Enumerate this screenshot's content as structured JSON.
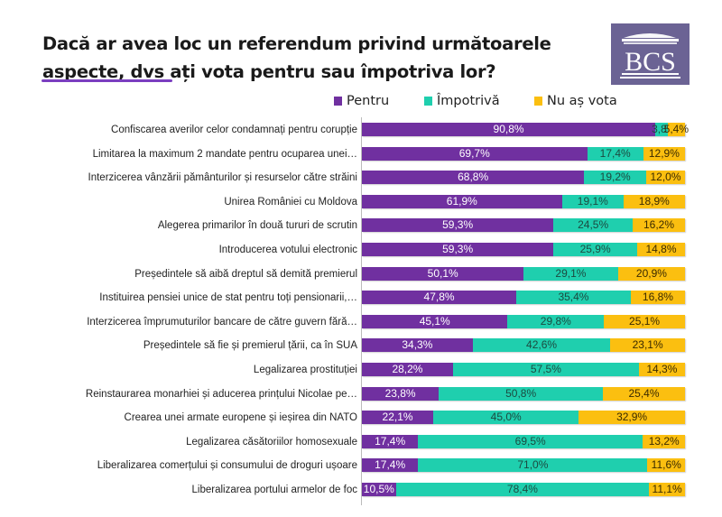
{
  "title_line1": "Dacă ar avea loc un referendum privind următoarele",
  "title_line2": "aspecte, dvs ați vota pentru sau împotriva lor?",
  "logo": {
    "text": "BCS",
    "icon": "bcs-building-logo",
    "bg_color": "#6b6394"
  },
  "colors": {
    "pentru": "#7030a0",
    "impotriva": "#1fcfae",
    "nu_as_vota": "#fbbf10"
  },
  "chart_data": {
    "type": "bar",
    "orientation": "horizontal",
    "stacked": true,
    "title": "Dacă ar avea loc un referendum privind următoarele aspecte, dvs ați vota pentru sau împotriva lor?",
    "legend_position": "top-right",
    "xlabel": "",
    "ylabel": "",
    "xlim": [
      0,
      100
    ],
    "unit": "%",
    "grid": false,
    "categories": [
      "Confiscarea averilor celor condamnați pentru corupție",
      "Limitarea la maximum 2 mandate pentru ocuparea unei…",
      "Interzicerea vânzării pământurilor și resurselor către străini",
      "Unirea României cu Moldova",
      "Alegerea primarilor în două tururi de scrutin",
      "Introducerea votului electronic",
      "Președintele să aibă dreptul să demită premierul",
      "Instituirea pensiei unice de stat pentru toți pensionarii,…",
      "Interzicerea împrumuturilor bancare de către guvern fără…",
      "Președintele să fie și premierul țării, ca în SUA",
      "Legalizarea prostituției",
      "Reinstaurarea monarhiei și aducerea prințului Nicolae pe…",
      "Crearea unei armate europene și ieșirea din NATO",
      "Legalizarea căsătoriilor homosexuale",
      "Liberalizarea comerțului și consumului de droguri ușoare",
      "Liberalizarea portului armelor de foc"
    ],
    "series": [
      {
        "name": "Pentru",
        "color": "#7030a0",
        "values": [
          90.8,
          69.7,
          68.8,
          61.9,
          59.3,
          59.3,
          50.1,
          47.8,
          45.1,
          34.3,
          28.2,
          23.8,
          22.1,
          17.4,
          17.4,
          10.5
        ],
        "labels": [
          "90,8%",
          "69,7%",
          "68,8%",
          "61,9%",
          "59,3%",
          "59,3%",
          "50,1%",
          "47,8%",
          "45,1%",
          "34,3%",
          "28,2%",
          "23,8%",
          "22,1%",
          "17,4%",
          "17,4%",
          "10,5%"
        ]
      },
      {
        "name": "Împotrivă",
        "color": "#1fcfae",
        "values": [
          3.8,
          17.4,
          19.2,
          19.1,
          24.5,
          25.9,
          29.1,
          35.4,
          29.8,
          42.6,
          57.5,
          50.8,
          45.0,
          69.5,
          71.0,
          78.4
        ],
        "labels": [
          "3,8%",
          "17,4%",
          "19,2%",
          "19,1%",
          "24,5%",
          "25,9%",
          "29,1%",
          "35,4%",
          "29,8%",
          "42,6%",
          "57,5%",
          "50,8%",
          "45,0%",
          "69,5%",
          "71,0%",
          "78,4%"
        ]
      },
      {
        "name": "Nu aș vota",
        "color": "#fbbf10",
        "values": [
          5.4,
          12.9,
          12.0,
          18.9,
          16.2,
          14.8,
          20.9,
          16.8,
          25.1,
          23.1,
          14.3,
          25.4,
          32.9,
          13.2,
          11.6,
          11.1
        ],
        "labels": [
          "5,4%",
          "12,9%",
          "12,0%",
          "18,9%",
          "16,2%",
          "14,8%",
          "20,9%",
          "16,8%",
          "25,1%",
          "23,1%",
          "14,3%",
          "25,4%",
          "32,9%",
          "13,2%",
          "11,6%",
          "11,1%"
        ]
      }
    ]
  }
}
